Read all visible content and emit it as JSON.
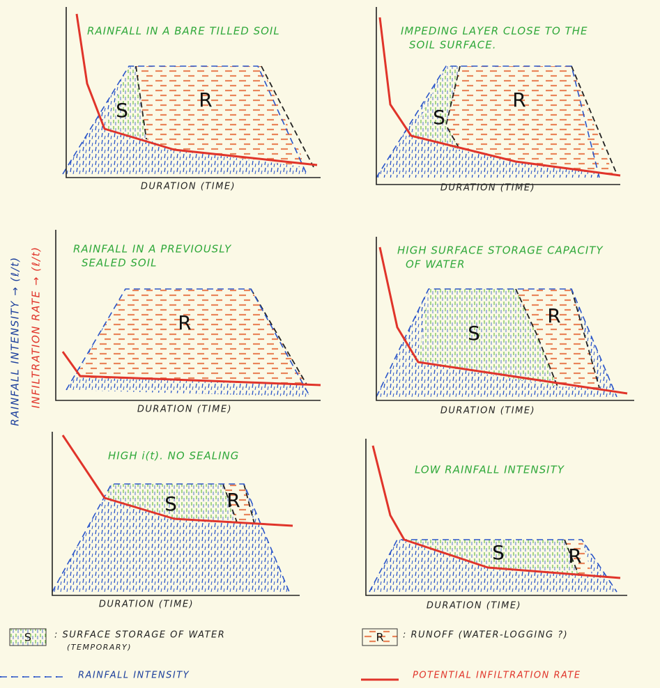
{
  "axis_labels": {
    "rainfall": "RAINFALL INTENSITY → (ℓ/t)",
    "infiltration": "INFILTRATION RATE → (ℓ/t)"
  },
  "panels": [
    {
      "title": [
        "RAINFALL IN A BARE TILLED SOIL"
      ],
      "x_label": "DURATION (TIME)",
      "regions": [
        "S",
        "R"
      ]
    },
    {
      "title": [
        "IMPEDING LAYER CLOSE TO THE",
        "SOIL SURFACE."
      ],
      "x_label": "DURATION (TIME)",
      "regions": [
        "S",
        "R"
      ]
    },
    {
      "title": [
        "RAINFALL IN A PREVIOUSLY",
        "SEALED SOIL"
      ],
      "x_label": "DURATION (TIME)",
      "regions": [
        "R"
      ]
    },
    {
      "title": [
        "HIGH SURFACE STORAGE CAPACITY",
        "OF WATER"
      ],
      "x_label": "DURATION (TIME)",
      "regions": [
        "S",
        "R"
      ]
    },
    {
      "title": [
        "HIGH i(t). NO SEALING"
      ],
      "x_label": "DURATION (TIME)",
      "regions": [
        "S",
        "R"
      ]
    },
    {
      "title": [
        "LOW RAINFALL INTENSITY"
      ],
      "x_label": "DURATION (TIME)",
      "regions": [
        "S",
        "R"
      ]
    }
  ],
  "legend": {
    "storage": {
      "symbol": "S",
      "text": [
        ": SURFACE STORAGE OF WATER",
        "(TEMPORARY)"
      ]
    },
    "runoff": {
      "symbol": "R",
      "text": ": RUNOFF (WATER-LOGGING ?)"
    },
    "rainfall": "RAINFALL INTENSITY",
    "infiltration": "POTENTIAL INFILTRATION RATE"
  }
}
